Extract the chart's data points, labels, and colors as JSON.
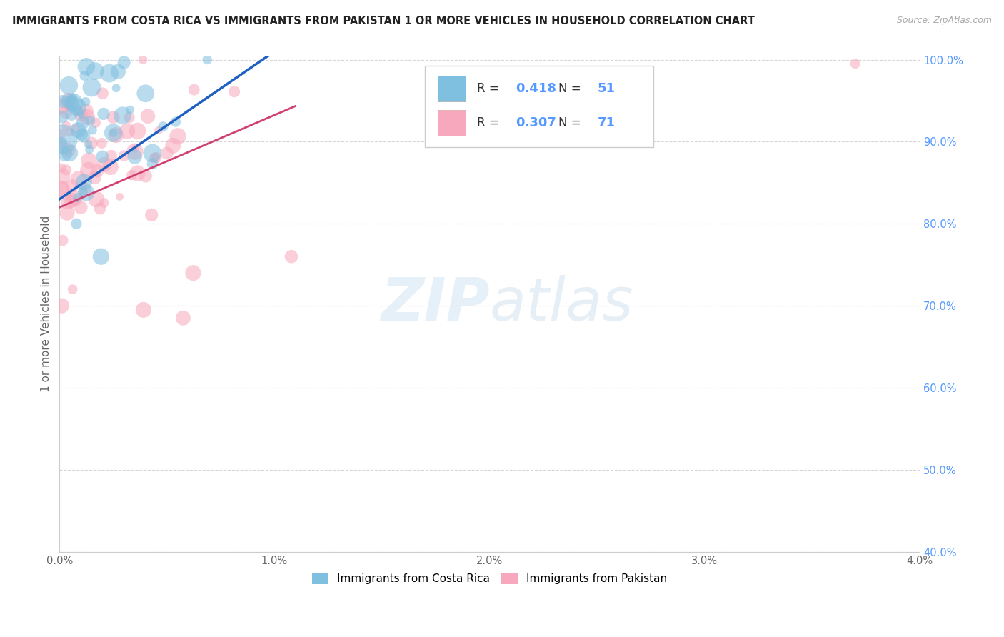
{
  "title": "IMMIGRANTS FROM COSTA RICA VS IMMIGRANTS FROM PAKISTAN 1 OR MORE VEHICLES IN HOUSEHOLD CORRELATION CHART",
  "source": "Source: ZipAtlas.com",
  "ylabel": "1 or more Vehicles in Household",
  "legend_label_1": "Immigrants from Costa Rica",
  "legend_label_2": "Immigrants from Pakistan",
  "R1": 0.418,
  "N1": 51,
  "R2": 0.307,
  "N2": 71,
  "color1": "#7fbfdf",
  "color2": "#f8a8bc",
  "line_color1": "#2060c0",
  "line_color2": "#d04070",
  "background_color": "#ffffff",
  "grid_color": "#cccccc",
  "ytick_color": "#5599ff",
  "xtick_color": "#666666",
  "title_color": "#222222",
  "source_color": "#aaaaaa",
  "ylabel_color": "#666666"
}
